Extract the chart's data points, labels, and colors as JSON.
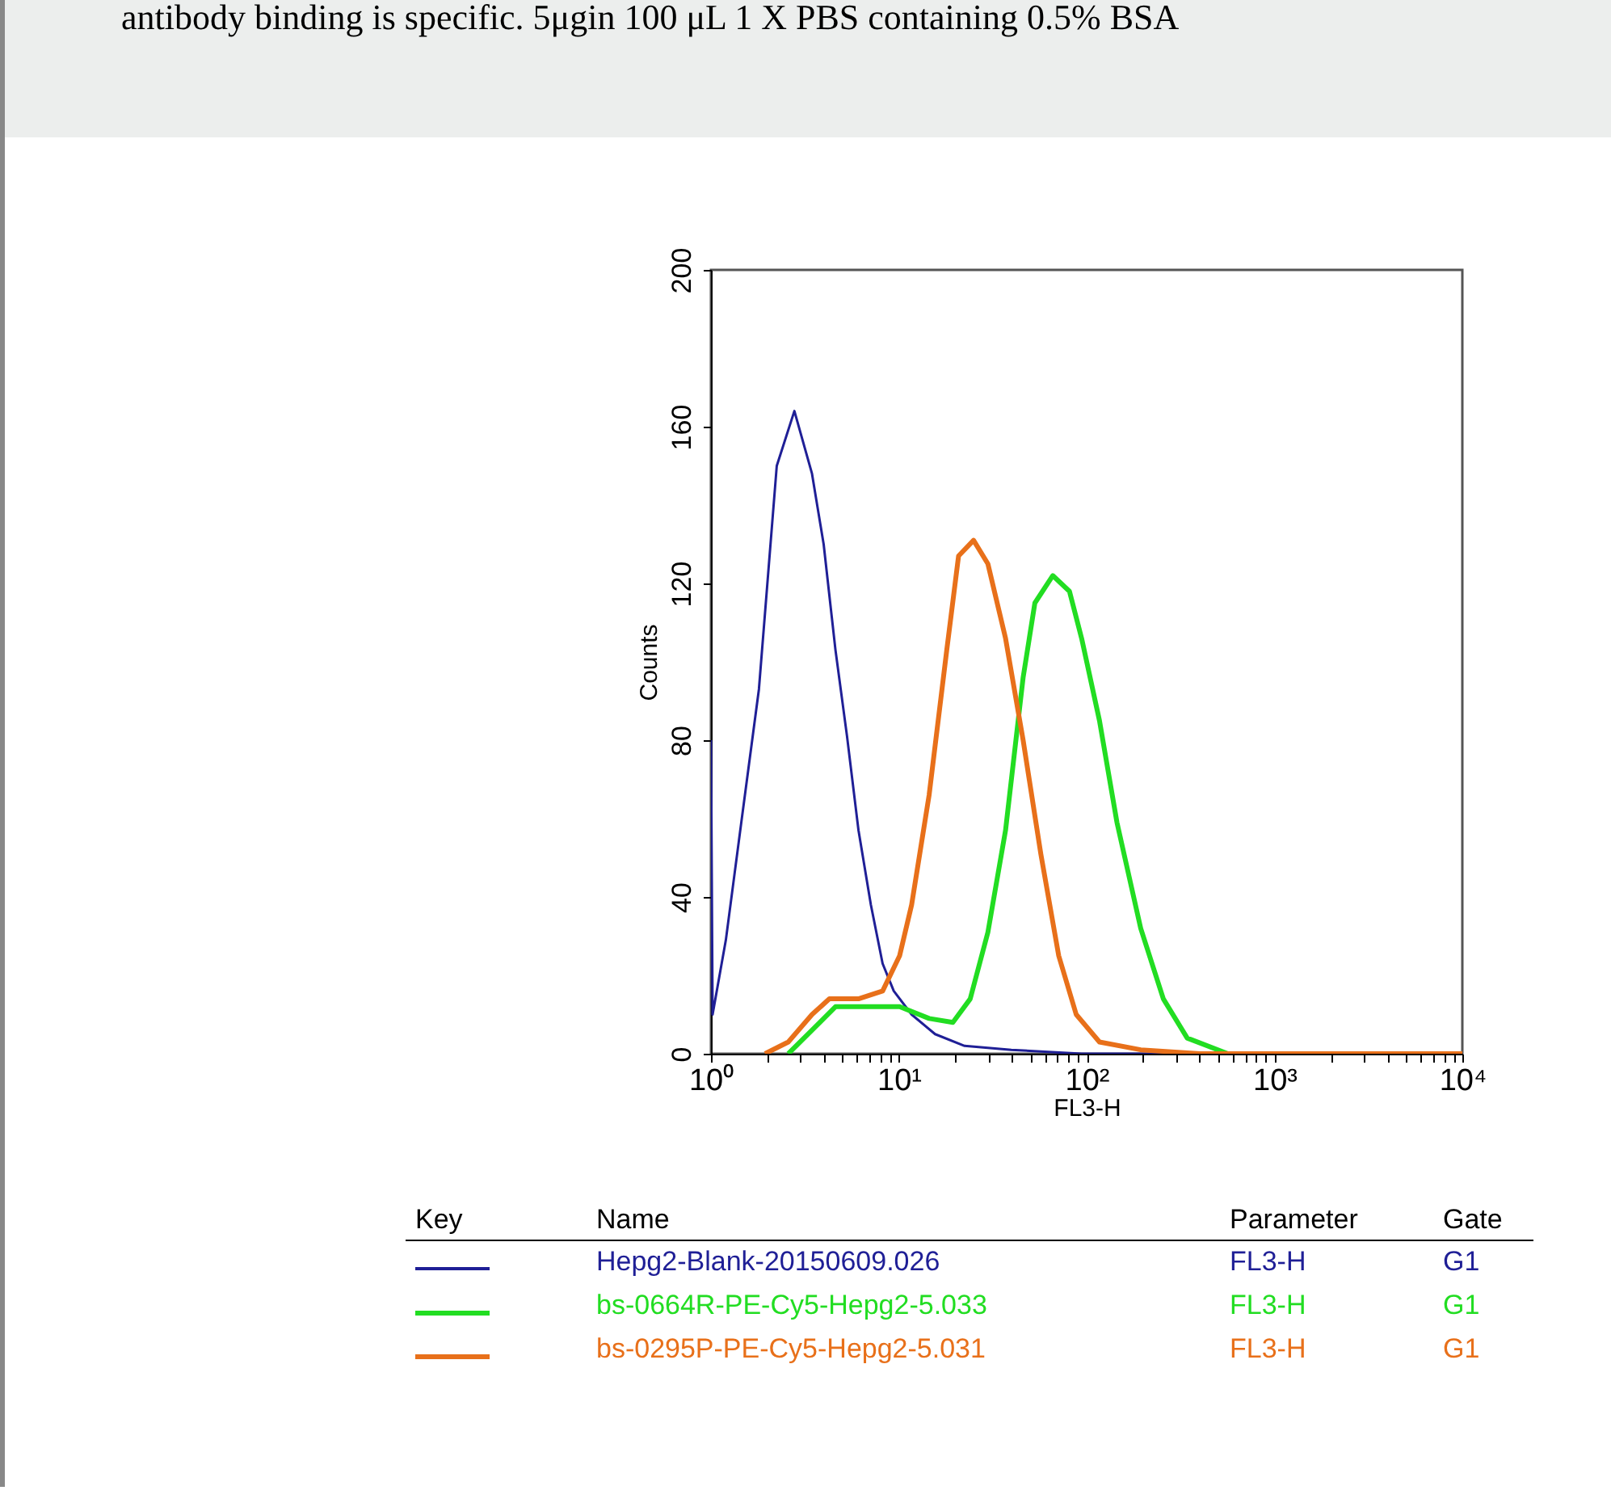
{
  "chart_data": {
    "type": "line",
    "xlabel": "FL3-H",
    "ylabel": "Counts",
    "log": "x",
    "xlim": [
      1,
      10000
    ],
    "xticks": [
      {
        "value": 1,
        "label": "10⁰"
      },
      {
        "value": 2,
        "label": null
      },
      {
        "value": 3,
        "label": null
      },
      {
        "value": 4,
        "label": null
      },
      {
        "value": 5,
        "label": null
      },
      {
        "value": 6,
        "label": null
      },
      {
        "value": 7,
        "label": null
      },
      {
        "value": 8,
        "label": null
      },
      {
        "value": 9,
        "label": null
      },
      {
        "value": 10,
        "label": "10¹"
      },
      {
        "value": 20,
        "label": null
      },
      {
        "value": 30,
        "label": null
      },
      {
        "value": 40,
        "label": null
      },
      {
        "value": 50,
        "label": null
      },
      {
        "value": 60,
        "label": null
      },
      {
        "value": 70,
        "label": null
      },
      {
        "value": 80,
        "label": null
      },
      {
        "value": 90,
        "label": null
      },
      {
        "value": 100,
        "label": "10²"
      },
      {
        "value": 200,
        "label": null
      },
      {
        "value": 300,
        "label": null
      },
      {
        "value": 400,
        "label": null
      },
      {
        "value": 500,
        "label": null
      },
      {
        "value": 600,
        "label": null
      },
      {
        "value": 700,
        "label": null
      },
      {
        "value": 800,
        "label": null
      },
      {
        "value": 900,
        "label": null
      },
      {
        "value": 1000,
        "label": "10³"
      },
      {
        "value": 2000,
        "label": null
      },
      {
        "value": 3000,
        "label": null
      },
      {
        "value": 4000,
        "label": null
      },
      {
        "value": 5000,
        "label": null
      },
      {
        "value": 6000,
        "label": null
      },
      {
        "value": 7000,
        "label": null
      },
      {
        "value": 8000,
        "label": null
      },
      {
        "value": 9000,
        "label": null
      },
      {
        "value": 10000,
        "label": "10⁴"
      }
    ],
    "ylim": [
      0,
      200
    ],
    "yticks": [
      0,
      40,
      80,
      120,
      160,
      200
    ],
    "grid": false,
    "legend": "bottom",
    "series": [
      {
        "name": "Hepg2-Blank-20150609.026",
        "color": "#1f1f96",
        "x": [
          1,
          1.02,
          1.2,
          1.45,
          1.8,
          2.24,
          2.78,
          3.45,
          3.98,
          4.6,
          5.3,
          6.1,
          7.1,
          8.2,
          9.4,
          11.7,
          15.6,
          22.4,
          39.7,
          94,
          10000
        ],
        "values": [
          80,
          10,
          29,
          59,
          93,
          150,
          164,
          148,
          130,
          103,
          81,
          57,
          38,
          23,
          16,
          10,
          5,
          2,
          1,
          0,
          0
        ]
      },
      {
        "name": "bs-0664R-PE-Cy5-Hepg2-5.033",
        "color": "#22dd22",
        "x": [
          2.58,
          3.45,
          4.6,
          7.1,
          10.1,
          14.5,
          19.4,
          24,
          29.8,
          37,
          45.9,
          53,
          66,
          81,
          94,
          117,
          145,
          194,
          256,
          343,
          565,
          10000
        ],
        "values": [
          0,
          6,
          12,
          12,
          12,
          9,
          8,
          14,
          31,
          57,
          96,
          115,
          122,
          118,
          106,
          85,
          59,
          32,
          14,
          4,
          0,
          0
        ]
      },
      {
        "name": "bs-0295P-PE-Cy5-Hepg2-5.031",
        "color": "#e8701a",
        "x": [
          1.94,
          2.58,
          3.45,
          4.27,
          6.1,
          8.2,
          10.1,
          11.7,
          14.5,
          18,
          20.8,
          25,
          29.8,
          37,
          45.9,
          57,
          71,
          88,
          117,
          194,
          400,
          10000
        ],
        "values": [
          0,
          3,
          10,
          14,
          14,
          16,
          25,
          38,
          66,
          103,
          127,
          131,
          125,
          106,
          80,
          51,
          25,
          10,
          3,
          1,
          0,
          0
        ]
      }
    ],
    "annotations": [
      "antibody binding is specific. 5μgin 100 μL 1 X PBS containing 0.5% BSA",
      "Key",
      "Name",
      "Parameter",
      "Gate",
      "FL3-H",
      "G1",
      "FL3-H",
      "G1",
      "FL3-H",
      "G1"
    ]
  }
}
